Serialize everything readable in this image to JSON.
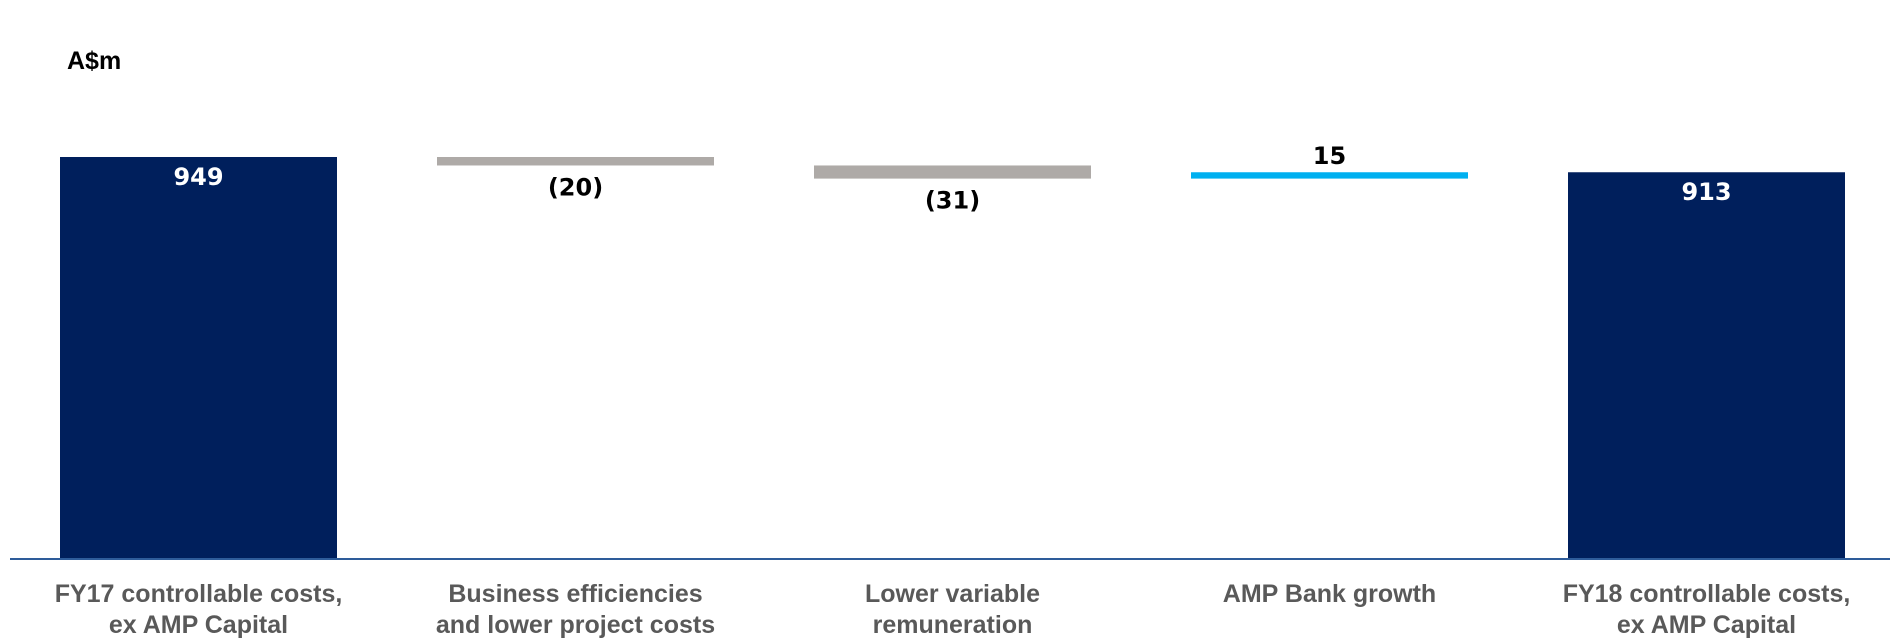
{
  "chart_data": {
    "type": "bar",
    "subtype": "waterfall",
    "unit_label": "A$m",
    "categories": [
      [
        "FY17 controllable costs,",
        "ex AMP Capital"
      ],
      [
        "Business efficiencies",
        "and lower project costs"
      ],
      [
        "Lower variable",
        "remuneration"
      ],
      [
        "AMP Bank growth"
      ],
      [
        "FY18 controllable costs,",
        "ex AMP Capital"
      ]
    ],
    "values": [
      949,
      -20,
      -31,
      15,
      913
    ],
    "value_labels": [
      "949",
      "(20)",
      "(31)",
      "15",
      "913"
    ],
    "kinds": [
      "total",
      "decrease",
      "decrease",
      "increase",
      "total"
    ],
    "colors": {
      "total": "#001f5c",
      "decrease": "#aeaaa7",
      "increase": "#00b0f0",
      "axis": "#2e5c9a",
      "category_text": "#595959",
      "label_dark": "#000000",
      "label_light": "#ffffff"
    },
    "ylim": [
      0,
      949
    ],
    "grid": false,
    "legend": "none"
  }
}
